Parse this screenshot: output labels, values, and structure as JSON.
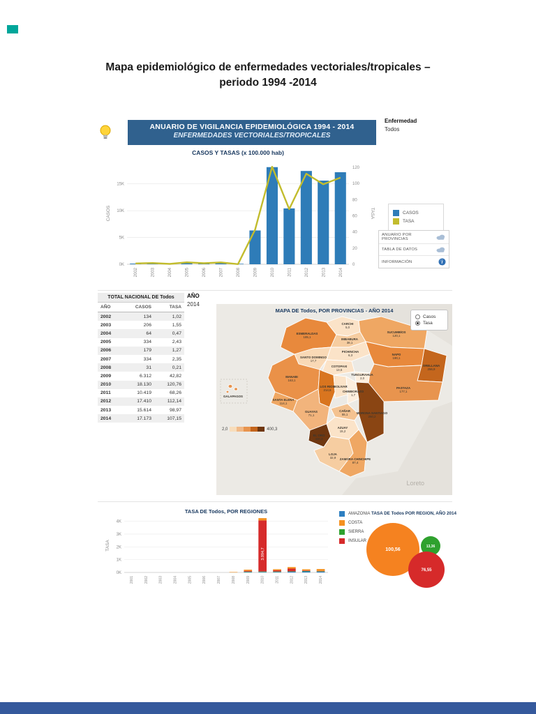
{
  "doc": {
    "title_line1": "Mapa epidemiológico de enfermedades vectoriales/tropicales –",
    "title_line2": "periodo 1994 -2014"
  },
  "dashboard": {
    "banner": {
      "line1": "ANUARIO DE VIGILANCIA EPIDEMIOLÓGICA 1994 - 2014",
      "line2": "ENFERMEDADES VECTORIALES/TROPICALES"
    },
    "disease_filter": {
      "label": "Enfermedad",
      "value": "Todos"
    },
    "legend": {
      "casos": "CASOS",
      "tasa": "TASA"
    },
    "buttons": {
      "anuario": "ANUARIO POR PROVINCIAS",
      "tabla": "TABLA DE DATOS",
      "info": "INFORMACIÓN"
    },
    "table": {
      "title": "TOTAL NACIONAL DE Todos",
      "columns": [
        "AÑO",
        "CASOS",
        "TASA"
      ],
      "rows": [
        [
          "2002",
          "134",
          "1,02"
        ],
        [
          "2003",
          "206",
          "1,55"
        ],
        [
          "2004",
          "64",
          "0,47"
        ],
        [
          "2005",
          "334",
          "2,43"
        ],
        [
          "2006",
          "179",
          "1,27"
        ],
        [
          "2007",
          "334",
          "2,35"
        ],
        [
          "2008",
          "31",
          "0,21"
        ],
        [
          "2009",
          "6.312",
          "42,82"
        ],
        [
          "2010",
          "18.130",
          "120,76"
        ],
        [
          "2011",
          "10.419",
          "68,26"
        ],
        [
          "2012",
          "17.410",
          "112,14"
        ],
        [
          "2013",
          "15.614",
          "98,97"
        ],
        [
          "2014",
          "17.173",
          "107,15"
        ]
      ]
    },
    "year_filter": {
      "label": "AÑO",
      "value": "2014"
    },
    "map": {
      "radio_casos": "Casos",
      "radio_tasa": "Tasa",
      "scale_min": "2,0",
      "scale_max": "400,3",
      "watermark": "Loreto"
    }
  },
  "chart_data": [
    {
      "type": "bar+line",
      "title": "CASOS Y TASAS (x 100.000 hab)",
      "categories": [
        "2002",
        "2003",
        "2004",
        "2005",
        "2006",
        "2007",
        "2008",
        "2009",
        "2010",
        "2011",
        "2012",
        "2013",
        "2014"
      ],
      "series": [
        {
          "name": "CASOS",
          "type": "bar",
          "color": "#2e7cb8",
          "values": [
            134,
            206,
            64,
            334,
            179,
            334,
            31,
            6312,
            18130,
            10419,
            17410,
            15614,
            17173
          ]
        },
        {
          "name": "TASA",
          "type": "line",
          "color": "#c2bc2d",
          "values": [
            1.02,
            1.55,
            0.47,
            2.43,
            1.27,
            2.35,
            0.21,
            42.82,
            120.76,
            68.26,
            112.14,
            98.97,
            107.15
          ]
        }
      ],
      "ylabel_left": "CASOS",
      "ylabel_right": "TASA",
      "yticks_left": [
        [
          0,
          "0K"
        ],
        [
          5000,
          "5K"
        ],
        [
          10000,
          "10K"
        ],
        [
          15000,
          "15K"
        ]
      ],
      "yticks_right": [
        0,
        20,
        40,
        60,
        80,
        100,
        120
      ],
      "ylim_left": [
        0,
        19000
      ],
      "ylim_right": [
        0,
        126
      ],
      "grid": true,
      "legend_position": "right"
    },
    {
      "type": "choropleth",
      "title": "MAPA DE Todos, POR PROVINCIAS - AÑO 2014",
      "measure": "Tasa",
      "scale": {
        "min": 2.0,
        "max": 400.3
      },
      "scale_colors": [
        "#f7ddbb",
        "#f1b987",
        "#e8944e",
        "#c4661d",
        "#6f3710"
      ],
      "provinces": [
        {
          "id": "esmeraldas",
          "name": "ESMERALDAS",
          "value": "185,1",
          "color": "#e8893c"
        },
        {
          "id": "carchi",
          "name": "CARCHI",
          "value": "5,0",
          "color": "#fbe3c8"
        },
        {
          "id": "imbabura",
          "name": "IMBABURA",
          "value": "38,1",
          "color": "#f6cda1"
        },
        {
          "id": "sucumbios",
          "name": "SUCUMBÍOS",
          "value": "120,1",
          "color": "#efa763"
        },
        {
          "id": "pichincha",
          "name": "PICHINCHA",
          "value": "6,3",
          "color": "#fbe3c8"
        },
        {
          "id": "santo_domingo",
          "name": "SANTO DOMINGO",
          "value": "17,7",
          "color": "#f9d9b6"
        },
        {
          "id": "napo",
          "name": "NAPO",
          "value": "190,1",
          "color": "#e8893c"
        },
        {
          "id": "orellana",
          "name": "ORELLANA",
          "value": "256,9",
          "color": "#c4661d"
        },
        {
          "id": "manabi",
          "name": "MANABI",
          "value": "163,1",
          "color": "#ea9148"
        },
        {
          "id": "cotopaxi",
          "name": "COTOPAXI",
          "value": "13,5",
          "color": "#fbe3c8"
        },
        {
          "id": "tungurahua",
          "name": "TUNGURAHUA",
          "value": "2,0",
          "color": "#fdeedd"
        },
        {
          "id": "los_rios",
          "name": "LOS RIOS",
          "value": "214,6",
          "color": "#d9751f"
        },
        {
          "id": "bolivar",
          "name": "BOLIVAR",
          "value": "",
          "color": "#fbe3c8"
        },
        {
          "id": "chimborazo",
          "name": "CHIMBORAZO",
          "value": "1,7",
          "color": "#fdeedd"
        },
        {
          "id": "pastaza",
          "name": "PASTAZA",
          "value": "177,1",
          "color": "#e8944e"
        },
        {
          "id": "morona",
          "name": "MORONA SANTIAGO",
          "value": "250,2",
          "color": "#8a4513"
        },
        {
          "id": "santa_elena",
          "name": "SANTA ELENA",
          "value": "114,1",
          "color": "#efa763"
        },
        {
          "id": "guayas",
          "name": "GUAYAS",
          "value": "71,1",
          "color": "#f2b47c"
        },
        {
          "id": "canar",
          "name": "CAÑAR",
          "value": "55,1",
          "color": "#f4c290"
        },
        {
          "id": "azuay",
          "name": "AZUAY",
          "value": "15,2",
          "color": "#fbe3c8"
        },
        {
          "id": "el_oro",
          "name": "EL ORO",
          "value": "400,3",
          "color": "#6f3710"
        },
        {
          "id": "loja",
          "name": "LOJA",
          "value": "32,9",
          "color": "#f6cda1"
        },
        {
          "id": "zamora",
          "name": "ZAMORA CHINCHIPE",
          "value": "87,4",
          "color": "#efa763"
        },
        {
          "id": "galapagos",
          "name": "GALAPAGOS",
          "value": "",
          "color": "#e8944e"
        }
      ]
    },
    {
      "type": "stacked-bar",
      "title": "TASA DE Todos, POR REGIONES",
      "ylabel": "TASA",
      "categories": [
        "2001",
        "2002",
        "2003",
        "2004",
        "2005",
        "2006",
        "2007",
        "2008",
        "2009",
        "2010",
        "2011",
        "2012",
        "2013",
        "2014"
      ],
      "yticks": [
        [
          0,
          "0K"
        ],
        [
          1000,
          "1K"
        ],
        [
          2000,
          "2K"
        ],
        [
          3000,
          "3K"
        ],
        [
          4000,
          "4K"
        ]
      ],
      "ylim": [
        0,
        4200
      ],
      "annotation": {
        "text": "3.994,7",
        "category": "2010",
        "series": "INSULAR"
      },
      "series": [
        {
          "name": "AMAZONIA",
          "color": "#2d7fc1",
          "values": [
            0,
            0,
            0,
            0,
            0,
            0,
            0,
            0,
            20,
            40,
            40,
            60,
            80,
            60
          ]
        },
        {
          "name": "SIERRA",
          "color": "#2fa12e",
          "values": [
            0,
            0,
            0,
            0,
            0,
            0,
            0,
            0,
            10,
            20,
            10,
            20,
            15,
            10
          ]
        },
        {
          "name": "INSULAR",
          "color": "#d62a2a",
          "values": [
            0,
            0,
            0,
            0,
            0,
            0,
            0,
            0,
            60,
            3994.7,
            100,
            210,
            40,
            35
          ]
        },
        {
          "name": "COSTA",
          "color": "#f59120",
          "values": [
            0,
            0,
            0,
            0,
            0,
            0,
            0,
            30,
            90,
            180,
            80,
            120,
            90,
            140
          ]
        }
      ]
    },
    {
      "type": "bubble",
      "title": "TASA DE Todos POR REGION, AÑO 2014",
      "bubbles": [
        {
          "region": "COSTA",
          "label": "100,56",
          "value": 100.56,
          "color": "#f58220"
        },
        {
          "region": "SIERRA",
          "label": "13,36",
          "value": 13.36,
          "color": "#2fa12e"
        },
        {
          "region": "INSULAR",
          "label": "76,55",
          "value": 76.55,
          "color": "#d62a2a"
        }
      ],
      "legend": [
        {
          "name": "AMAZONIA",
          "color": "#2d7fc1"
        },
        {
          "name": "COSTA",
          "color": "#f59120"
        },
        {
          "name": "SIERRA",
          "color": "#2fa12e"
        },
        {
          "name": "INSULAR",
          "color": "#d62a2a"
        }
      ]
    }
  ]
}
